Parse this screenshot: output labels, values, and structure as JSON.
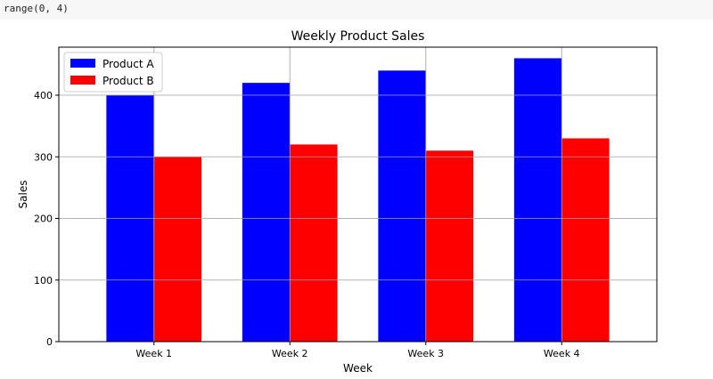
{
  "cell_output": "range(0, 4)",
  "chart_data": {
    "type": "bar",
    "title": "Weekly Product Sales",
    "xlabel": "Week",
    "ylabel": "Sales",
    "categories": [
      "Week 1",
      "Week 2",
      "Week 3",
      "Week 4"
    ],
    "series": [
      {
        "name": "Product A",
        "color": "#0000ff",
        "values": [
          400,
          420,
          440,
          460
        ]
      },
      {
        "name": "Product B",
        "color": "#ff0000",
        "values": [
          300,
          320,
          310,
          330
        ]
      }
    ],
    "ylim": [
      0,
      478
    ],
    "yticks": [
      0,
      100,
      200,
      300,
      400
    ],
    "grid": true,
    "legend_position": "upper-left"
  }
}
